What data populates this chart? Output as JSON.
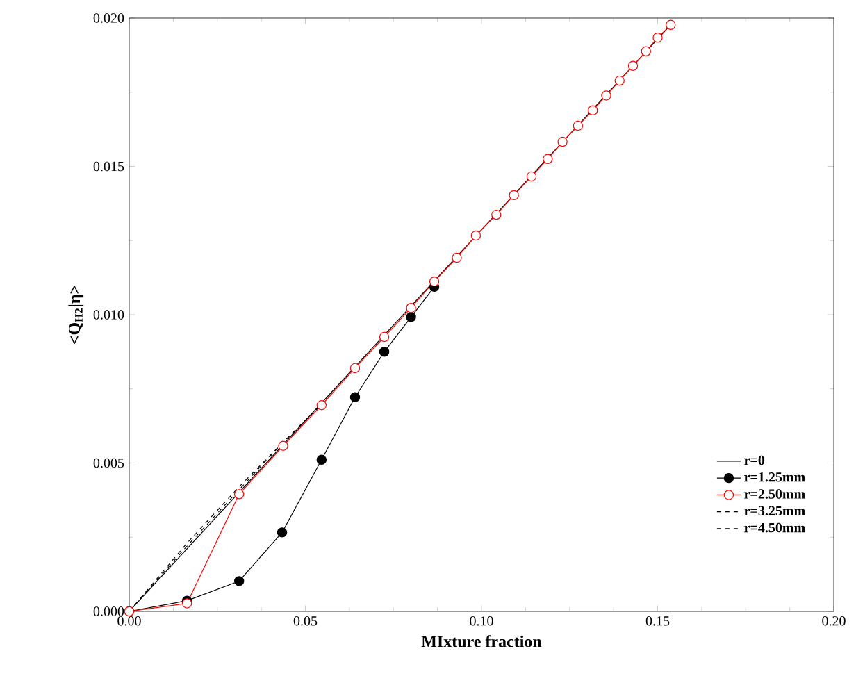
{
  "chart_data": {
    "type": "line",
    "xlabel": "MIxture fraction",
    "ylabel": "<Q$_{H2}$|η>",
    "xlim": [
      0,
      0.2
    ],
    "ylim": [
      0,
      0.02
    ],
    "xticks": [
      {
        "value": 0,
        "label": "0.00"
      },
      {
        "value": 0.05,
        "label": "0.05"
      },
      {
        "value": 0.1,
        "label": "0.10"
      },
      {
        "value": 0.15,
        "label": "0.15"
      },
      {
        "value": 0.2,
        "label": "0.20"
      }
    ],
    "yticks": [
      {
        "value": 0,
        "label": "0.000"
      },
      {
        "value": 0.005,
        "label": "0.005"
      },
      {
        "value": 0.01,
        "label": "0.010"
      },
      {
        "value": 0.015,
        "label": "0.015"
      },
      {
        "value": 0.02,
        "label": "0.020"
      }
    ],
    "legend": "bottom right",
    "grid": false,
    "series": [
      {
        "name": "r=0",
        "color": "#000000",
        "line_style": "solid",
        "x": [
          0,
          0.1537
        ],
        "values": [
          0,
          0.01977
        ]
      },
      {
        "name": "r=1.25mm",
        "color": "#000000",
        "line_style": "solid",
        "marker": "circle",
        "x": [
          0,
          0.0164,
          0.0312,
          0.0434,
          0.0546,
          0.0641,
          0.0724,
          0.08,
          0.0866
        ],
        "values": [
          0,
          0.00036,
          0.00102,
          0.00266,
          0.00511,
          0.00722,
          0.00875,
          0.00992,
          0.01094
        ]
      },
      {
        "name": "r=2.50mm",
        "color": "#ff0000",
        "line_style": "solid",
        "marker": "circle",
        "x": [
          0,
          0.0164,
          0.0312,
          0.0437,
          0.0546,
          0.0641,
          0.0724,
          0.08,
          0.0866,
          0.093,
          0.0984,
          0.1042,
          0.1092,
          0.1142,
          0.1188,
          0.123,
          0.1274,
          0.1316,
          0.1354,
          0.1392,
          0.143,
          0.1467,
          0.15,
          0.1537
        ],
        "values": [
          0,
          0.00027,
          0.00395,
          0.00558,
          0.00695,
          0.0082,
          0.00925,
          0.01023,
          0.01112,
          0.01192,
          0.01267,
          0.01337,
          0.01403,
          0.01466,
          0.01525,
          0.01583,
          0.01637,
          0.01689,
          0.01739,
          0.01789,
          0.01839,
          0.01888,
          0.01934,
          0.01977
        ]
      },
      {
        "name": "r=3.25mm",
        "color": "#000000",
        "line_style": "dashed",
        "x": [
          0,
          0.0164,
          0.0312,
          0.0437,
          0.0546
        ],
        "values": [
          0,
          0.0022,
          0.0041,
          0.0057,
          0.00698
        ]
      },
      {
        "name": "r=4.50mm",
        "color": "#000000",
        "line_style": "dashed",
        "x": [
          0,
          0.0164,
          0.0312,
          0.0437,
          0.0546
        ],
        "values": [
          0,
          0.0023,
          0.0042,
          0.0057,
          0.00698
        ]
      }
    ]
  }
}
